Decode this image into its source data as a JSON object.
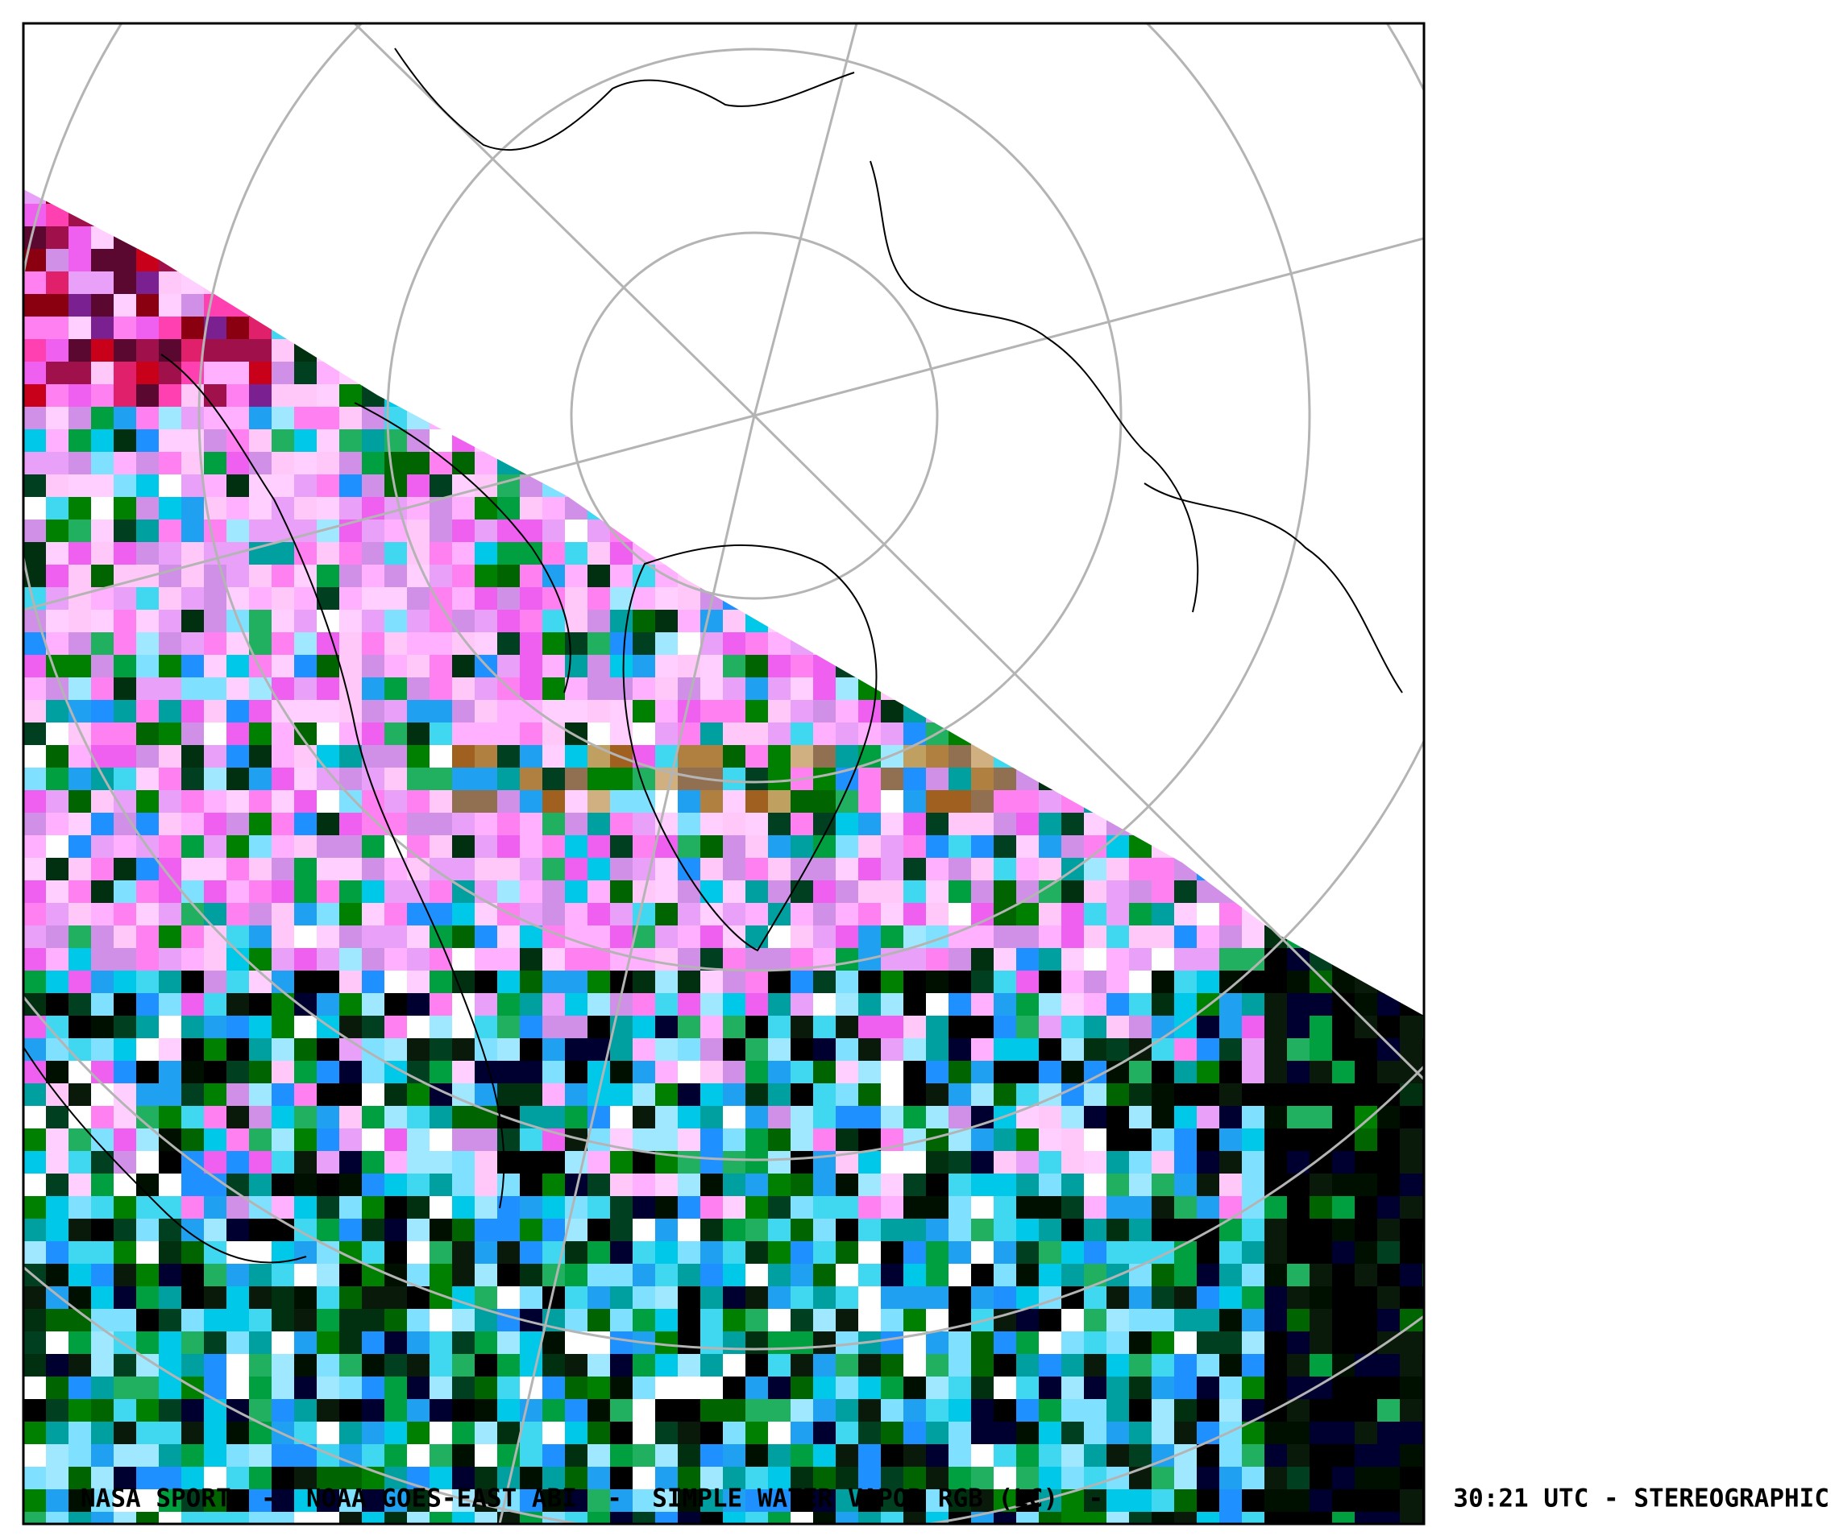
{
  "caption": {
    "left": "NASA SPORT  -  NOAA GOES-EAST ABI  -  SIMPLE WATER VAPOR RGB (LC)  -",
    "right": "30:21 UTC - STEREOGRAPHIC"
  }
}
